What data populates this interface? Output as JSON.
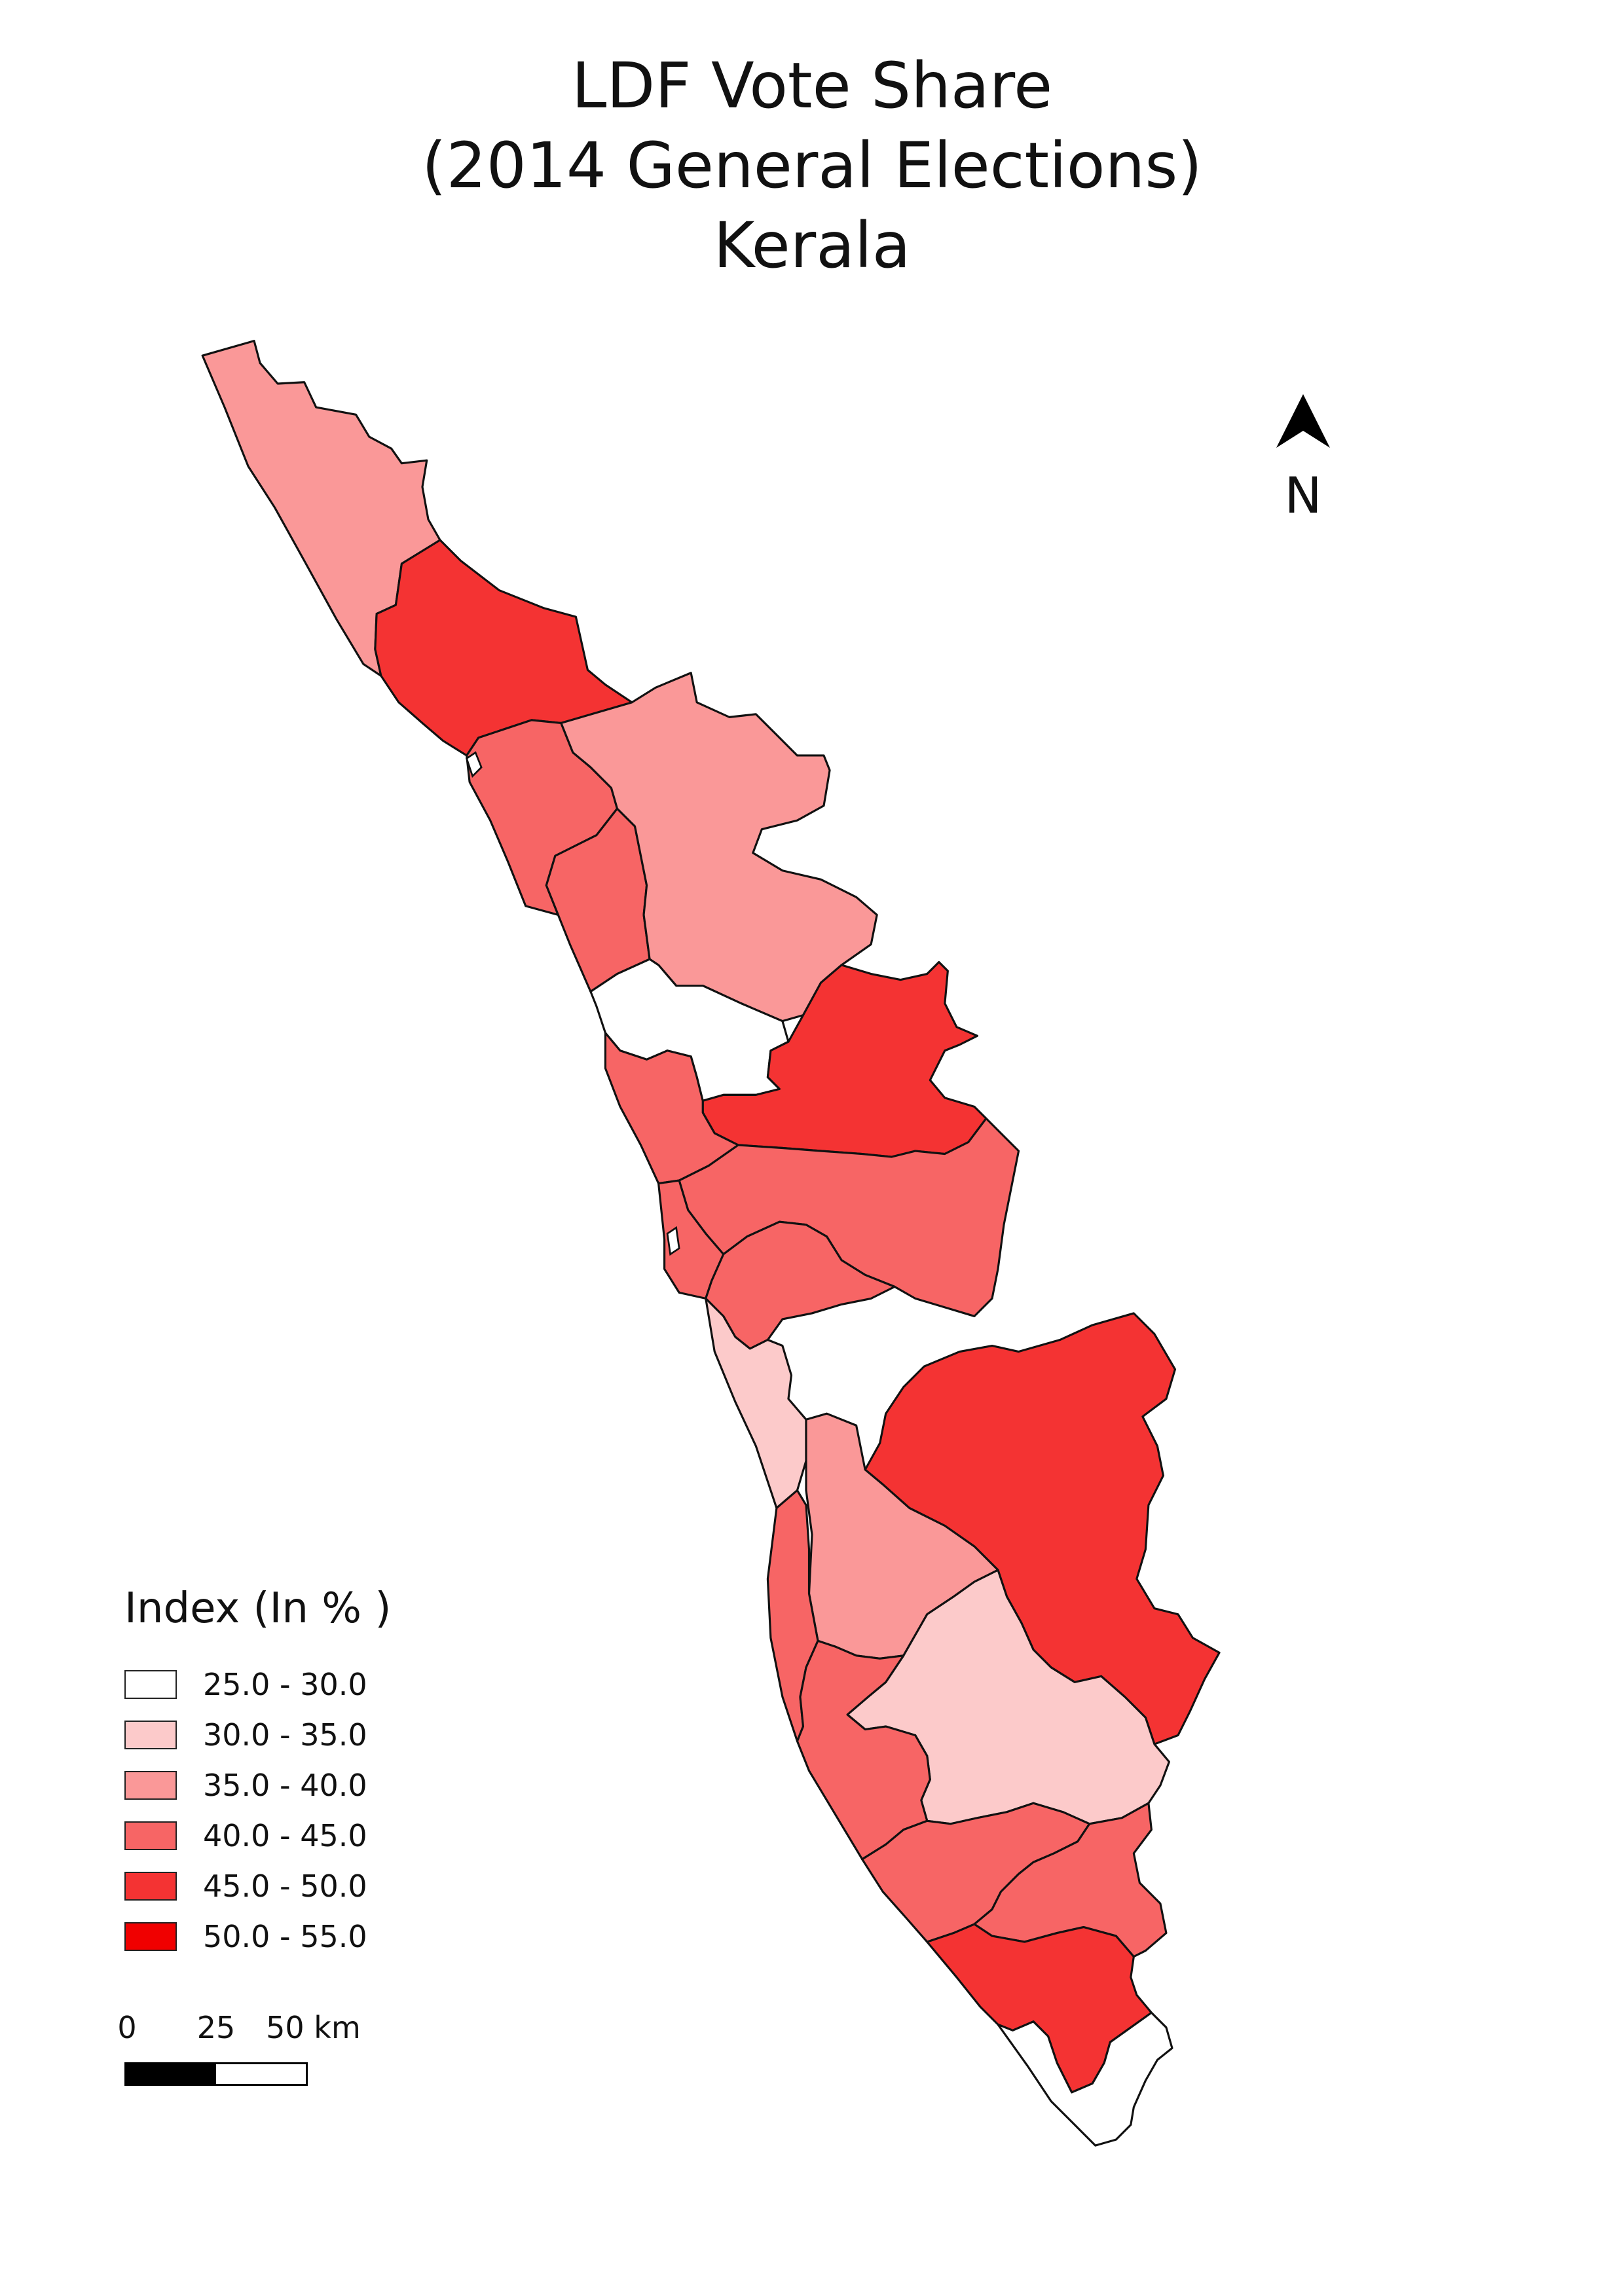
{
  "title": {
    "line1": "LDF Vote Share",
    "line2": "(2014 General Elections)",
    "line3": "Kerala"
  },
  "north_arrow": {
    "label": "N",
    "icon": "north-arrow-icon"
  },
  "legend": {
    "title": "Index (In % )",
    "classes": [
      {
        "label": "25.0 - 30.0",
        "color": "#ffffff"
      },
      {
        "label": "30.0 - 35.0",
        "color": "#fccaca"
      },
      {
        "label": "35.0 - 40.0",
        "color": "#fa9898"
      },
      {
        "label": "40.0 - 45.0",
        "color": "#f76565"
      },
      {
        "label": "45.0 - 50.0",
        "color": "#f43333"
      },
      {
        "label": "50.0 - 55.0",
        "color": "#f00000"
      }
    ]
  },
  "scale_bar": {
    "labels": [
      "0",
      "25",
      "50 km"
    ],
    "segments": [
      {
        "km": 25,
        "color": "#000000"
      },
      {
        "km": 25,
        "color": "#ffffff"
      }
    ]
  },
  "regions": [
    {
      "class": 2
    },
    {
      "class": 4
    },
    {
      "class": 3
    },
    {
      "class": 3
    },
    {
      "class": 2
    },
    {
      "class": 0
    },
    {
      "class": 4
    },
    {
      "class": 3
    },
    {
      "class": 3
    },
    {
      "class": 3
    },
    {
      "class": 3
    },
    {
      "class": 1
    },
    {
      "class": 4
    },
    {
      "class": 2
    },
    {
      "class": 3
    },
    {
      "class": 1
    },
    {
      "class": 3
    },
    {
      "class": 3
    },
    {
      "class": 3
    },
    {
      "class": 4
    },
    {
      "class": 0
    }
  ]
}
